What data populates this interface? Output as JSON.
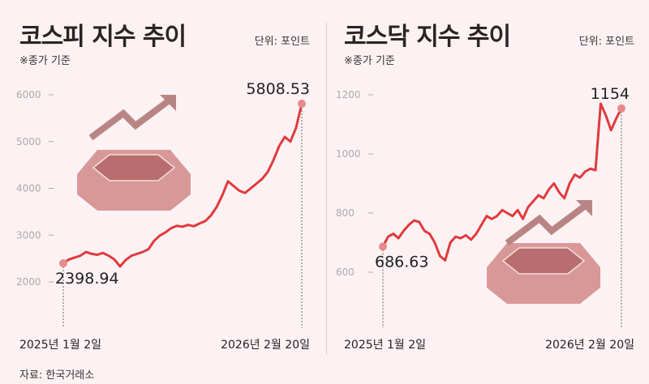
{
  "source": "자료: 한국거래소",
  "chart_data": [
    {
      "type": "line",
      "title": "코스피 지수 추이",
      "note": "※종가 기준",
      "unit": "단위: 포인트",
      "x_labels": [
        "2025년 1월 2일",
        "2026년 2월 20일"
      ],
      "yticks": [
        2000,
        3000,
        4000,
        5000,
        6000
      ],
      "ylim": [
        2000,
        6000
      ],
      "start_label": "2398.94",
      "end_label": "5808.53",
      "line_color": "#e03a3e",
      "values": [
        2398.94,
        2480,
        2520,
        2560,
        2640,
        2600,
        2580,
        2620,
        2560,
        2480,
        2330,
        2470,
        2560,
        2600,
        2640,
        2700,
        2880,
        2990,
        3060,
        3150,
        3200,
        3180,
        3220,
        3190,
        3250,
        3300,
        3420,
        3600,
        3850,
        4150,
        4050,
        3950,
        3900,
        4000,
        4100,
        4200,
        4350,
        4600,
        4900,
        5100,
        5000,
        5300,
        5808.53
      ]
    },
    {
      "type": "line",
      "title": "코스닥 지수 추이",
      "note": "※종가 기준",
      "unit": "단위: 포인트",
      "x_labels": [
        "2025년 1월 2일",
        "2026년 2월 20일"
      ],
      "yticks": [
        600,
        800,
        1000,
        1200
      ],
      "ylim": [
        600,
        1200
      ],
      "start_label": "686.63",
      "end_label": "1154",
      "line_color": "#e03a3e",
      "values": [
        686.63,
        720,
        730,
        715,
        740,
        760,
        775,
        770,
        740,
        730,
        700,
        655,
        640,
        700,
        720,
        715,
        725,
        710,
        730,
        760,
        790,
        780,
        790,
        810,
        800,
        790,
        810,
        780,
        820,
        840,
        860,
        850,
        880,
        900,
        870,
        850,
        900,
        930,
        920,
        940,
        950,
        945,
        1170,
        1130,
        1080,
        1120,
        1154
      ]
    }
  ]
}
